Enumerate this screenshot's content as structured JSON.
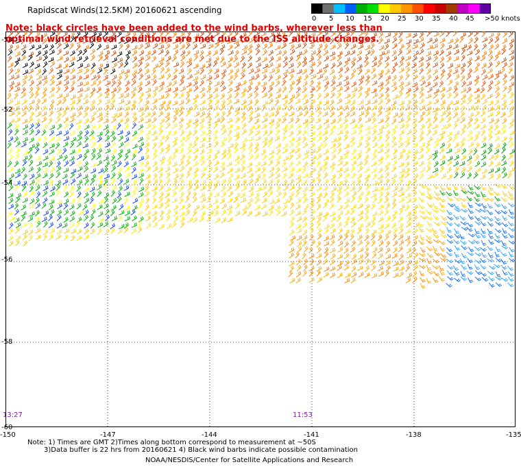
{
  "header": {
    "title": "Rapidscat Winds(12.5KM) 20160621 ascending",
    "note_lines": [
      "Note: black circles have been added to the wind barbs, wherever less than",
      "optimal wind retrieval conditions are met due to the ISS altitude changes."
    ]
  },
  "legend": {
    "unit": "knots",
    "tick_labels": [
      "0",
      "5",
      "10",
      "15",
      "20",
      "25",
      "30",
      "35",
      "40",
      "45",
      ">50 knots"
    ],
    "colors": [
      "#000000",
      "#707070",
      "#00bfff",
      "#0060ff",
      "#00b000",
      "#00e000",
      "#ffff00",
      "#ffc800",
      "#ff9600",
      "#ff5000",
      "#ff0000",
      "#c80000",
      "#a03c00",
      "#c000c0",
      "#ff00ff",
      "#6000a0"
    ]
  },
  "map": {
    "lat_labels": [
      "-50",
      "-52",
      "-54",
      "-56",
      "-58",
      "-60"
    ],
    "lon_labels": [
      "-150",
      "-147",
      "-144",
      "-141",
      "-138",
      "-135"
    ],
    "time_labels": [
      "13:27",
      "11:53"
    ]
  },
  "footer": {
    "notes_line1": "Note: 1) Times are GMT 2)Times along bottom correspond to measurement at ~50S",
    "notes_line2": "3)Data buffer is 22 hrs from 20160621 4) Black wind barbs indicate possible contamination",
    "credit": "NOAA/NESDIS/Center for Satellite Applications and Research"
  }
}
